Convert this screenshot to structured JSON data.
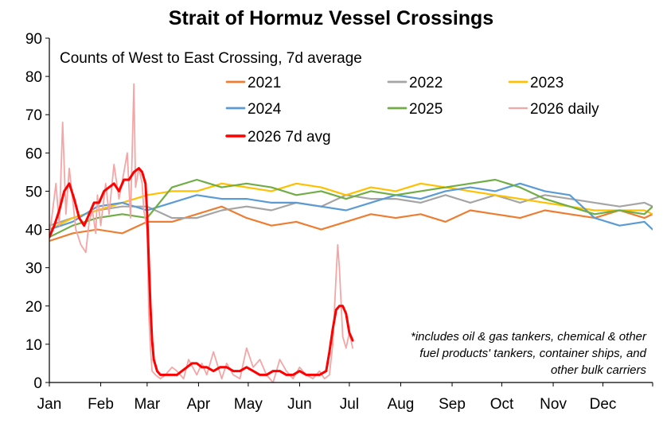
{
  "chart_data": {
    "type": "line",
    "title": "Strait of Hormuz Vessel Crossings",
    "subtitle": "Counts of West to East Crossing, 7d average",
    "note_lines": [
      "*includes oil & gas tankers, chemical & other",
      "fuel products' tankers, container ships, and",
      "other bulk carriers"
    ],
    "x_axis": {
      "type": "day-of-year",
      "range": [
        1,
        365
      ],
      "tick_labels": [
        "Jan",
        "Feb",
        "Mar",
        "Apr",
        "May",
        "Jun",
        "Jul",
        "Aug",
        "Sep",
        "Oct",
        "Nov",
        "Dec"
      ],
      "tick_days": [
        1,
        32,
        60,
        91,
        121,
        152,
        182,
        213,
        244,
        274,
        305,
        335
      ]
    },
    "y_axis": {
      "range": [
        0,
        90
      ],
      "ticks": [
        0,
        10,
        20,
        30,
        40,
        50,
        60,
        70,
        80,
        90
      ]
    },
    "grid": false,
    "legend_position": "top, inside plot",
    "series": [
      {
        "name": "2021",
        "color": "#ED7D31",
        "width": 2.2,
        "x": [
          1,
          15,
          30,
          45,
          60,
          75,
          90,
          105,
          120,
          135,
          150,
          165,
          180,
          195,
          210,
          225,
          240,
          255,
          270,
          285,
          300,
          315,
          330,
          345,
          360,
          365
        ],
        "y": [
          37,
          39,
          40,
          39,
          42,
          42,
          44,
          46,
          43,
          41,
          42,
          40,
          42,
          44,
          43,
          44,
          42,
          45,
          44,
          43,
          45,
          44,
          43,
          45,
          43,
          44
        ]
      },
      {
        "name": "2022",
        "color": "#A5A5A5",
        "width": 2.2,
        "x": [
          1,
          15,
          30,
          45,
          60,
          75,
          90,
          105,
          120,
          135,
          150,
          165,
          180,
          195,
          210,
          225,
          240,
          255,
          270,
          285,
          300,
          315,
          330,
          345,
          360,
          365
        ],
        "y": [
          41,
          43,
          45,
          46,
          46,
          43,
          43,
          45,
          46,
          45,
          47,
          46,
          49,
          48,
          48,
          47,
          49,
          47,
          49,
          47,
          49,
          48,
          47,
          46,
          47,
          46
        ]
      },
      {
        "name": "2023",
        "color": "#FFC000",
        "width": 2.2,
        "x": [
          1,
          15,
          30,
          45,
          60,
          75,
          90,
          105,
          120,
          135,
          150,
          165,
          180,
          195,
          210,
          225,
          240,
          255,
          270,
          285,
          300,
          315,
          330,
          345,
          360,
          365
        ],
        "y": [
          40,
          43,
          45,
          47,
          49,
          50,
          50,
          52,
          51,
          50,
          52,
          51,
          49,
          51,
          50,
          52,
          51,
          50,
          49,
          48,
          47,
          46,
          45,
          45,
          45,
          44
        ]
      },
      {
        "name": "2024",
        "color": "#5B9BD5",
        "width": 2.2,
        "x": [
          1,
          15,
          30,
          45,
          60,
          75,
          90,
          105,
          120,
          135,
          150,
          165,
          180,
          195,
          210,
          225,
          240,
          255,
          270,
          285,
          300,
          315,
          330,
          345,
          360,
          365
        ],
        "y": [
          40,
          42,
          46,
          47,
          45,
          47,
          49,
          48,
          48,
          47,
          47,
          46,
          45,
          47,
          49,
          48,
          50,
          51,
          50,
          52,
          50,
          49,
          43,
          41,
          42,
          40
        ]
      },
      {
        "name": "2025",
        "color": "#70AD47",
        "width": 2.2,
        "x": [
          1,
          15,
          30,
          45,
          60,
          75,
          90,
          105,
          120,
          135,
          150,
          165,
          180,
          195,
          210,
          225,
          240,
          255,
          270,
          285,
          300,
          315,
          330,
          345,
          360,
          365
        ],
        "y": [
          38,
          41,
          43,
          44,
          43,
          51,
          53,
          51,
          52,
          51,
          49,
          50,
          48,
          50,
          49,
          50,
          51,
          52,
          53,
          51,
          48,
          46,
          44,
          45,
          44,
          46
        ]
      },
      {
        "name": "2026 daily",
        "color": "#F4A6A6",
        "width": 1.8,
        "x": [
          1,
          5,
          7,
          9,
          11,
          13,
          15,
          17,
          20,
          23,
          25,
          27,
          29,
          30,
          32,
          35,
          37,
          40,
          43,
          46,
          48,
          50,
          52,
          53,
          55,
          57,
          58,
          60,
          61,
          62,
          63,
          65,
          68,
          71,
          75,
          78,
          82,
          85,
          90,
          93,
          96,
          100,
          105,
          108,
          112,
          116,
          120,
          124,
          128,
          132,
          136,
          140,
          144,
          148,
          152,
          156,
          160,
          164,
          167,
          170,
          172,
          174,
          175,
          176,
          178,
          180,
          182,
          184
        ],
        "y": [
          38,
          52,
          41,
          68,
          44,
          56,
          48,
          40,
          36,
          34,
          42,
          45,
          39,
          49,
          41,
          52,
          44,
          57,
          48,
          55,
          60,
          43,
          78,
          51,
          56,
          52,
          45,
          40,
          18,
          9,
          3,
          2,
          1,
          2,
          4,
          3,
          1,
          6,
          2,
          5,
          2,
          8,
          1,
          5,
          2,
          1,
          9,
          4,
          6,
          2,
          0,
          6,
          3,
          1,
          4,
          2,
          1,
          3,
          1,
          2,
          10,
          28,
          36,
          30,
          12,
          9,
          13,
          9
        ]
      },
      {
        "name": "2026 7d avg",
        "color": "#FF0000",
        "width": 3,
        "x": [
          1,
          4,
          7,
          10,
          13,
          16,
          19,
          22,
          25,
          28,
          31,
          34,
          37,
          40,
          43,
          46,
          49,
          52,
          55,
          57,
          59,
          60,
          61,
          62,
          63,
          64,
          66,
          68,
          71,
          75,
          78,
          81,
          84,
          87,
          90,
          93,
          96,
          100,
          104,
          108,
          112,
          116,
          120,
          124,
          128,
          132,
          136,
          140,
          144,
          148,
          152,
          156,
          160,
          164,
          168,
          170,
          172,
          174,
          176,
          178,
          180,
          182,
          184
        ],
        "y": [
          38,
          41,
          45,
          50,
          52,
          48,
          43,
          41,
          44,
          47,
          47,
          50,
          51,
          52,
          50,
          53,
          53,
          55,
          56,
          55,
          52,
          44,
          32,
          20,
          11,
          6,
          3,
          2,
          2,
          2,
          2,
          3,
          4,
          5,
          5,
          4,
          4,
          3,
          4,
          4,
          3,
          3,
          4,
          3,
          2,
          2,
          3,
          3,
          2,
          2,
          3,
          2,
          2,
          2,
          3,
          8,
          14,
          19,
          20,
          20,
          18,
          13,
          11
        ]
      }
    ]
  }
}
